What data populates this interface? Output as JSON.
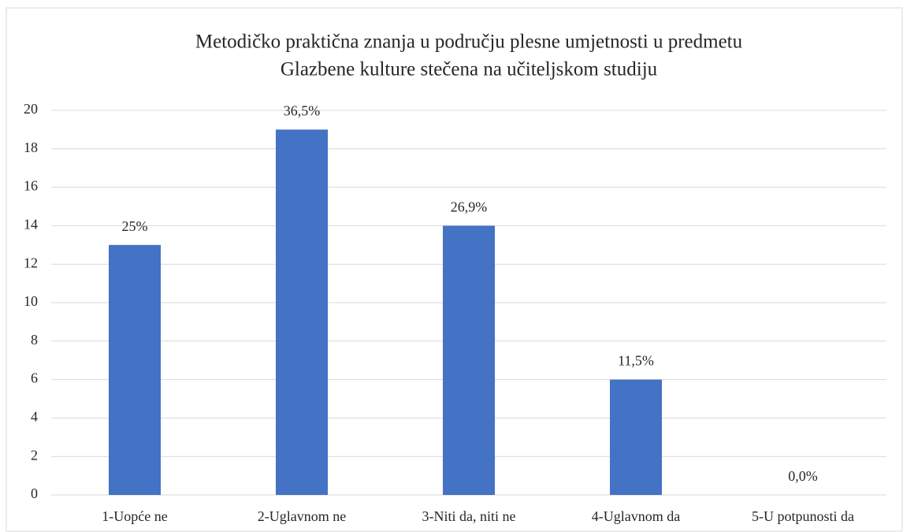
{
  "chart_data": {
    "type": "bar",
    "title": [
      "Metodičko praktična znanja u području plesne umjetnosti u predmetu",
      "Glazbene kulture stečena na učiteljskom studiju"
    ],
    "categories": [
      "1-Uopće ne",
      "2-Uglavnom ne",
      "3-Niti da, niti ne",
      "4-Uglavnom da",
      "5-U potpunosti da"
    ],
    "values": [
      13,
      19,
      14,
      6,
      0
    ],
    "data_labels": [
      "25%",
      "36,5%",
      "26,9%",
      "11,5%",
      "0,0%"
    ],
    "color": "#4472c4",
    "ylim": [
      0,
      20
    ],
    "yticks": [
      0,
      2,
      4,
      6,
      8,
      10,
      12,
      14,
      16,
      18,
      20
    ],
    "grid": true
  }
}
